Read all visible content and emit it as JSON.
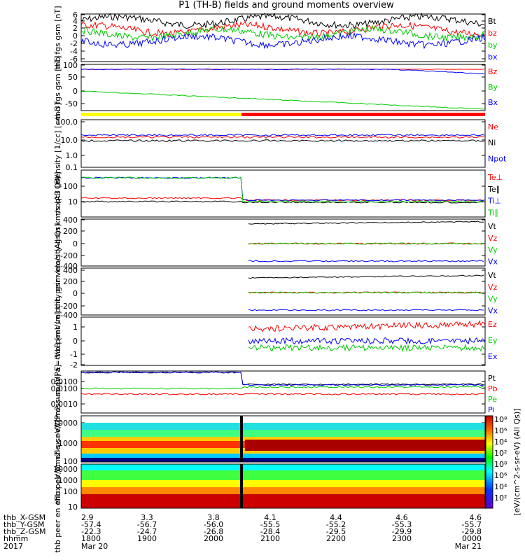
{
  "title": "P1 (TH-B) fields and ground moments overview",
  "colors": {
    "black": "#000000",
    "red": "#ff0000",
    "green": "#00cc00",
    "blue": "#0000ff",
    "yellow": "#ffff00"
  },
  "chart_data": [
    {
      "type": "line",
      "panel": 1,
      "ylabel": "thb fgs gsm [nT]",
      "yticks": [
        "6",
        "4",
        "2",
        "0",
        "-2",
        "-4",
        "-6"
      ],
      "ylim": [
        -6,
        6
      ],
      "series": [
        {
          "name": "Bt",
          "color": "black"
        },
        {
          "name": "bz",
          "color": "red"
        },
        {
          "name": "by",
          "color": "green"
        },
        {
          "name": "bx",
          "color": "blue"
        }
      ]
    },
    {
      "type": "line",
      "panel": 2,
      "ylabel": "thb fgs gsm [nT]",
      "yticks": [
        "100",
        "50",
        "0",
        "-50"
      ],
      "ylim": [
        -80,
        100
      ],
      "series": [
        {
          "name": "Bz",
          "color": "red"
        },
        {
          "name": "By",
          "color": "green"
        },
        {
          "name": "Bx",
          "color": "blue"
        }
      ]
    },
    {
      "type": "line",
      "panel": 3,
      "ylabel": "Density [1/cc] [cm-3]",
      "yticks": [
        "100.0",
        "10.0",
        "1.0",
        "0.1"
      ],
      "yscale": "log",
      "series": [
        {
          "name": "Ne",
          "color": "red"
        },
        {
          "name": "Ni",
          "color": "black"
        },
        {
          "name": "Npot",
          "color": "blue"
        }
      ]
    },
    {
      "type": "line",
      "panel": 4,
      "ylabel": "moqt3 [eV]",
      "yticks": [
        "100",
        "10"
      ],
      "yscale": "log",
      "series": [
        {
          "name": "Te⊥",
          "color": "red"
        },
        {
          "name": "Te∥",
          "color": "black"
        },
        {
          "name": "Ti⊥",
          "color": "blue"
        },
        {
          "name": "Ti∥",
          "color": "green"
        }
      ]
    },
    {
      "type": "line",
      "panel": 5,
      "ylabel": "thb peir velocity gsm km/s (All Qs)",
      "yticks": [
        "400",
        "200",
        "0",
        "-200",
        "-400"
      ],
      "ylim": [
        -400,
        400
      ],
      "series": [
        {
          "name": "Vt",
          "color": "black"
        },
        {
          "name": "Vz",
          "color": "red"
        },
        {
          "name": "Vy",
          "color": "green"
        },
        {
          "name": "Vx",
          "color": "blue"
        }
      ]
    },
    {
      "type": "line",
      "panel": 6,
      "ylabel": "thb peer velocity gsm km/s (All Qs)",
      "yticks": [
        "400",
        "200",
        "0",
        "-200",
        "-400"
      ],
      "ylim": [
        -400,
        400
      ],
      "series": [
        {
          "name": "Vt",
          "color": "black"
        },
        {
          "name": "Vz",
          "color": "red"
        },
        {
          "name": "Vy",
          "color": "green"
        },
        {
          "name": "Vx",
          "color": "blue"
        }
      ]
    },
    {
      "type": "line",
      "panel": 7,
      "ylabel": "E=-VxB [mV/m]",
      "yticks": [
        "1",
        "0",
        "-1",
        "-2"
      ],
      "ylim": [
        -2,
        1.7
      ],
      "series": [
        {
          "name": "Ez",
          "color": "red"
        },
        {
          "name": "Ey",
          "color": "green"
        },
        {
          "name": "Ex",
          "color": "blue"
        }
      ]
    },
    {
      "type": "line",
      "panel": 8,
      "ylabel": "Pressure [nPa]",
      "yticks": [
        "0.0100",
        "0.0100",
        "0.0010"
      ],
      "yscale": "log",
      "series": [
        {
          "name": "Pt",
          "color": "black"
        },
        {
          "name": "Pb",
          "color": "red"
        },
        {
          "name": "Pe",
          "color": "green"
        },
        {
          "name": "Pi",
          "color": "blue"
        }
      ]
    },
    {
      "type": "heatmap",
      "panel": 9,
      "ylabel": "thb peir en eflux eV/(cm2-s-sr-eV)",
      "yticks": [
        "10000",
        "1000",
        "100"
      ]
    },
    {
      "type": "heatmap",
      "panel": 10,
      "ylabel": "thb peer en eflux eV/(cm2-s-sr-eV)",
      "yticks": [
        "10000",
        "1000",
        "100",
        "10"
      ]
    }
  ],
  "colorbar": {
    "label": "[eV/(cm^2-s-sr-eV) (All Qs)]",
    "ticks": [
      "10⁸",
      "10⁶",
      "10⁴",
      "10²",
      "10⁸",
      "10⁶",
      "10⁴",
      "10²"
    ]
  },
  "xaxis": {
    "rows": [
      {
        "label": "thb_X-GSM",
        "values": [
          "2.9",
          "3.3",
          "3.8",
          "4.1",
          "4.4",
          "4.6",
          "4.6"
        ]
      },
      {
        "label": "thb_Y-GSM",
        "values": [
          "-57.4",
          "-56.7",
          "-56.0",
          "-55.5",
          "-55.2",
          "-55.3",
          "-55.7"
        ]
      },
      {
        "label": "thb_Z-GSM",
        "values": [
          "-22.3",
          "-24.7",
          "-26.8",
          "-28.4",
          "-29.5",
          "-29.9",
          "-29.8"
        ]
      },
      {
        "label": "hhmm",
        "values": [
          "1800",
          "1900",
          "2000",
          "2100",
          "2200",
          "2300",
          "0000"
        ]
      }
    ],
    "year": "2017",
    "start_date": "Mar 20",
    "end_date": "Mar 21"
  }
}
